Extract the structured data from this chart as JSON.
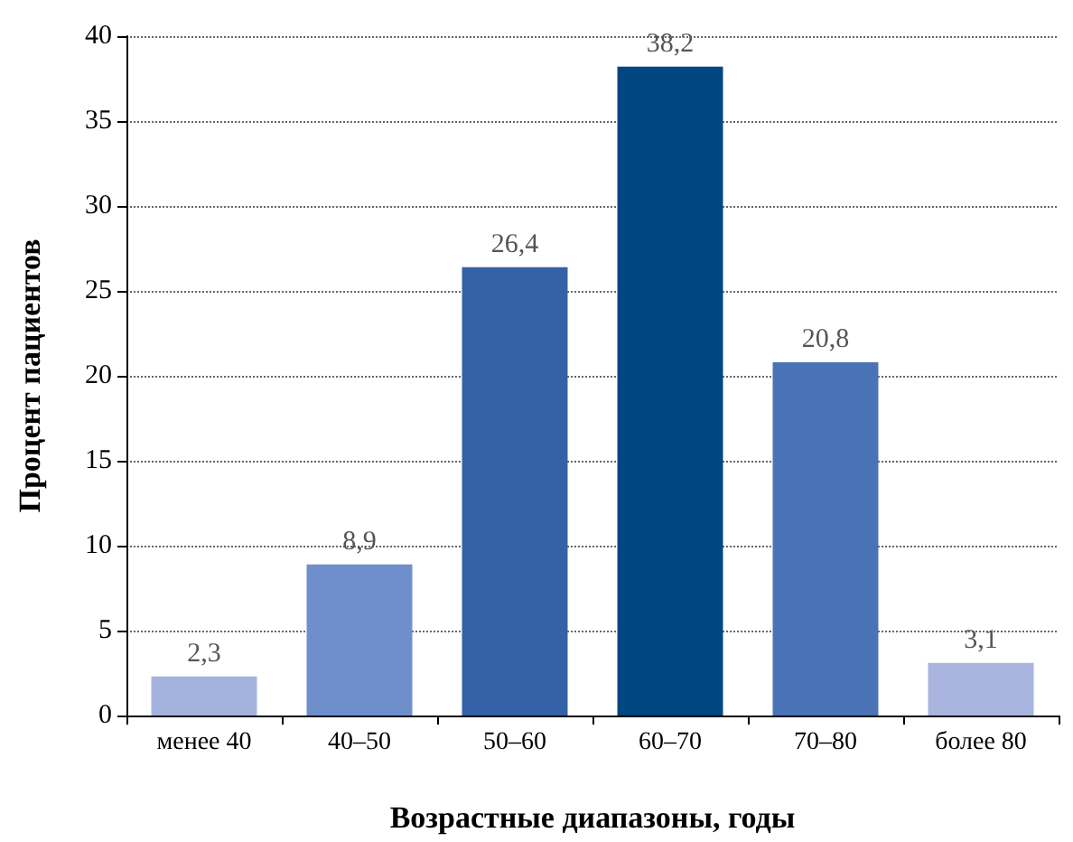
{
  "chart_data": {
    "type": "bar",
    "xlabel": "Возрастные диапазоны, годы",
    "ylabel": "Процент пациентов",
    "categories": [
      "менее 40",
      "40–50",
      "50–60",
      "60–70",
      "70–80",
      "более 80"
    ],
    "values": [
      2.3,
      8.9,
      26.4,
      38.2,
      20.8,
      3.1
    ],
    "value_labels": [
      "2,3",
      "8,9",
      "26,4",
      "38,2",
      "20,8",
      "3,1"
    ],
    "colors": [
      "#a4b3de",
      "#6f8fcc",
      "#3461a8",
      "#004681",
      "#4a73b5",
      "#a9b5df"
    ],
    "ylim": [
      0,
      40
    ],
    "yticks": [
      0,
      5,
      10,
      15,
      20,
      25,
      30,
      35,
      40
    ],
    "grid": "y"
  }
}
